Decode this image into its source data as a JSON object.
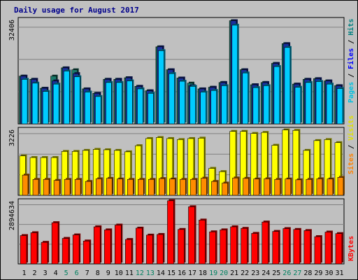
{
  "chart_data": [
    {
      "type": "bar",
      "panel": "top",
      "title": "Daily usage for August 2017",
      "categories": [
        "1",
        "2",
        "3",
        "4",
        "5",
        "6",
        "7",
        "8",
        "9",
        "10",
        "11",
        "12",
        "13",
        "14",
        "15",
        "16",
        "17",
        "18",
        "19",
        "20",
        "21",
        "22",
        "23",
        "24",
        "25",
        "26",
        "27",
        "28",
        "29",
        "30",
        "31"
      ],
      "weekend_days": [
        "5",
        "6",
        "12",
        "13",
        "19",
        "20",
        "26",
        "27"
      ],
      "y_tick_label": "32406",
      "ylim": [
        0,
        32406
      ],
      "grid": true,
      "side_label": [
        {
          "text": "Pages",
          "color": "#00c0e0"
        },
        {
          "text": " / ",
          "color": "#000000"
        },
        {
          "text": "Files",
          "color": "#0000ff"
        },
        {
          "text": " / ",
          "color": "#000000"
        },
        {
          "text": "Hits",
          "color": "#008080"
        }
      ],
      "series": [
        {
          "name": "Hits",
          "color": "#1a7a6a",
          "values": [
            15000,
            14000,
            11200,
            15000,
            17600,
            17000,
            11000,
            9600,
            14000,
            14000,
            14500,
            11800,
            10400,
            24200,
            17000,
            14400,
            12800,
            11000,
            11500,
            13000,
            32400,
            17000,
            12300,
            13000,
            19000,
            25200,
            12500,
            14000,
            14200,
            13500,
            12000
          ]
        },
        {
          "name": "Files",
          "color": "#1a2f9e",
          "values": [
            15000,
            14000,
            11200,
            13500,
            17600,
            15800,
            11000,
            9600,
            14000,
            14000,
            14500,
            11800,
            10400,
            24200,
            17000,
            14400,
            12000,
            11000,
            11500,
            13000,
            32400,
            17000,
            12300,
            13000,
            19000,
            25200,
            12500,
            14000,
            14200,
            13500,
            12000
          ]
        },
        {
          "name": "Pages",
          "color": "#00ccff",
          "values": [
            14000,
            12800,
            10200,
            12500,
            16600,
            14800,
            10000,
            8600,
            13000,
            13000,
            13500,
            11000,
            9600,
            23000,
            15800,
            13400,
            11800,
            10000,
            10500,
            12000,
            31000,
            16000,
            11400,
            12000,
            18000,
            24000,
            11500,
            13000,
            13300,
            12500,
            11100
          ]
        }
      ]
    },
    {
      "type": "bar",
      "panel": "middle",
      "categories": [
        "1",
        "2",
        "3",
        "4",
        "5",
        "6",
        "7",
        "8",
        "9",
        "10",
        "11",
        "12",
        "13",
        "14",
        "15",
        "16",
        "17",
        "18",
        "19",
        "20",
        "21",
        "22",
        "23",
        "24",
        "25",
        "26",
        "27",
        "28",
        "29",
        "30",
        "31"
      ],
      "y_tick_label": "3226",
      "ylim": [
        0,
        3226
      ],
      "grid": true,
      "side_label": [
        {
          "text": "Sites",
          "color": "#ff8000"
        },
        {
          "text": " / ",
          "color": "#000000"
        },
        {
          "text": "Visits",
          "color": "#e0e000"
        }
      ],
      "series": [
        {
          "name": "Visits",
          "color": "#ffff00",
          "values": [
            1930,
            1850,
            1850,
            1850,
            2150,
            2150,
            2200,
            2250,
            2230,
            2200,
            2130,
            2430,
            2780,
            2830,
            2780,
            2730,
            2780,
            2800,
            1320,
            1160,
            3130,
            3130,
            3030,
            3080,
            2450,
            3200,
            3180,
            2200,
            2680,
            2730,
            2580
          ]
        },
        {
          "name": "Sites",
          "color": "#ff8c00",
          "values": [
            990,
            780,
            780,
            730,
            780,
            780,
            680,
            810,
            830,
            800,
            780,
            780,
            780,
            820,
            800,
            780,
            780,
            840,
            680,
            600,
            850,
            830,
            800,
            810,
            780,
            800,
            760,
            780,
            810,
            800,
            880
          ]
        }
      ]
    },
    {
      "type": "bar",
      "panel": "bottom",
      "categories": [
        "1",
        "2",
        "3",
        "4",
        "5",
        "6",
        "7",
        "8",
        "9",
        "10",
        "11",
        "12",
        "13",
        "14",
        "15",
        "16",
        "17",
        "18",
        "19",
        "20",
        "21",
        "22",
        "23",
        "24",
        "25",
        "26",
        "27",
        "28",
        "29",
        "30",
        "31"
      ],
      "y_tick_label": "2894634",
      "ylim": [
        0,
        2894634
      ],
      "grid": true,
      "side_label": [
        {
          "text": "KBytes",
          "color": "#ff0000"
        }
      ],
      "series": [
        {
          "name": "KBytes",
          "color": "#ff0000",
          "values": [
            1300000,
            1430000,
            990000,
            1890000,
            1170000,
            1330000,
            1050000,
            1700000,
            1560000,
            1780000,
            1120000,
            1640000,
            1320000,
            1350000,
            2894634,
            1580000,
            2620000,
            2010000,
            1470000,
            1560000,
            1700000,
            1630000,
            1400000,
            1920000,
            1490000,
            1620000,
            1580000,
            1530000,
            1250000,
            1460000,
            1390000
          ]
        }
      ]
    }
  ]
}
